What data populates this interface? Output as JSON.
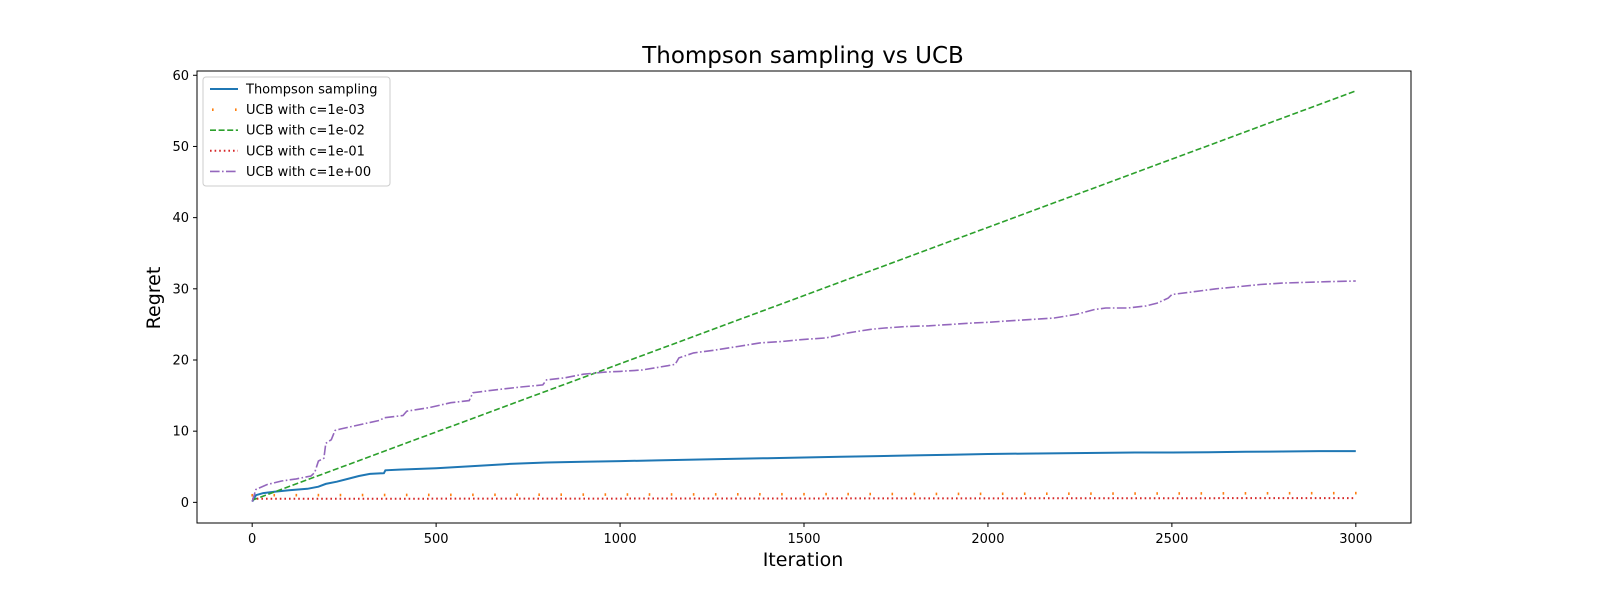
{
  "chart_data": {
    "type": "line",
    "title": "Thompson sampling vs UCB",
    "xlabel": "Iteration",
    "ylabel": "Regret",
    "xlim": [
      -150,
      3150
    ],
    "ylim": [
      -2.9,
      60.6
    ],
    "xticks": [
      0,
      500,
      1000,
      1500,
      2000,
      2500,
      3000
    ],
    "yticks": [
      0,
      10,
      20,
      30,
      40,
      50,
      60
    ],
    "grid": false,
    "legend_position": "top-left",
    "series": [
      {
        "name": "Thompson sampling",
        "color": "#1f77b4",
        "style": "solid",
        "x": [
          0,
          10,
          30,
          60,
          100,
          150,
          180,
          200,
          230,
          260,
          290,
          320,
          358,
          362,
          400,
          500,
          600,
          700,
          800,
          900,
          1000,
          1100,
          1200,
          1300,
          1400,
          1500,
          1600,
          1700,
          1800,
          1900,
          2000,
          2100,
          2200,
          2300,
          2400,
          2500,
          2600,
          2700,
          2800,
          2900,
          3000
        ],
        "y": [
          0.1,
          1.0,
          1.3,
          1.5,
          1.7,
          1.9,
          2.2,
          2.6,
          2.9,
          3.3,
          3.7,
          4.0,
          4.1,
          4.5,
          4.6,
          4.8,
          5.1,
          5.4,
          5.6,
          5.7,
          5.8,
          5.9,
          6.0,
          6.1,
          6.2,
          6.3,
          6.4,
          6.5,
          6.6,
          6.7,
          6.8,
          6.85,
          6.9,
          6.95,
          7.0,
          7.0,
          7.05,
          7.1,
          7.15,
          7.2,
          7.2
        ]
      },
      {
        "name": "UCB with c=1e-03",
        "color": "#ff7f0e",
        "style": "sparse-dots",
        "x": [
          0,
          3000
        ],
        "y": [
          0.9,
          1.2
        ]
      },
      {
        "name": "UCB with c=1e-02",
        "color": "#2ca02c",
        "style": "dashed",
        "x": [
          0,
          3000
        ],
        "y": [
          0.3,
          57.8
        ]
      },
      {
        "name": "UCB with c=1e-01",
        "color": "#d62728",
        "style": "dotted",
        "x": [
          0,
          3000
        ],
        "y": [
          0.5,
          0.6
        ]
      },
      {
        "name": "UCB with c=1e+00",
        "color": "#9467bd",
        "style": "dashdot",
        "x": [
          0,
          10,
          40,
          80,
          120,
          160,
          170,
          180,
          195,
          200,
          215,
          225,
          240,
          300,
          345,
          360,
          410,
          420,
          480,
          540,
          590,
          600,
          660,
          730,
          790,
          800,
          850,
          900,
          960,
          1000,
          1060,
          1130,
          1150,
          1160,
          1200,
          1260,
          1320,
          1380,
          1440,
          1500,
          1560,
          1620,
          1680,
          1720,
          1780,
          1840,
          1900,
          1960,
          2000,
          2060,
          2120,
          2180,
          2240,
          2290,
          2320,
          2380,
          2430,
          2460,
          2490,
          2500,
          2560,
          2620,
          2680,
          2740,
          2800,
          2860,
          2920,
          3000
        ],
        "y": [
          0.1,
          1.8,
          2.5,
          3.0,
          3.3,
          3.7,
          4.2,
          5.8,
          6.2,
          8.3,
          8.8,
          10.1,
          10.3,
          11.0,
          11.5,
          11.9,
          12.2,
          12.8,
          13.3,
          14.0,
          14.3,
          15.4,
          15.8,
          16.2,
          16.5,
          17.2,
          17.5,
          18.0,
          18.3,
          18.4,
          18.6,
          19.2,
          19.4,
          20.3,
          21.0,
          21.4,
          21.9,
          22.4,
          22.6,
          22.9,
          23.1,
          23.8,
          24.3,
          24.5,
          24.7,
          24.8,
          25.0,
          25.2,
          25.3,
          25.5,
          25.7,
          25.9,
          26.4,
          27.1,
          27.3,
          27.3,
          27.6,
          28.0,
          28.7,
          29.2,
          29.6,
          30.0,
          30.3,
          30.6,
          30.8,
          30.9,
          31.0,
          31.1
        ]
      }
    ]
  }
}
